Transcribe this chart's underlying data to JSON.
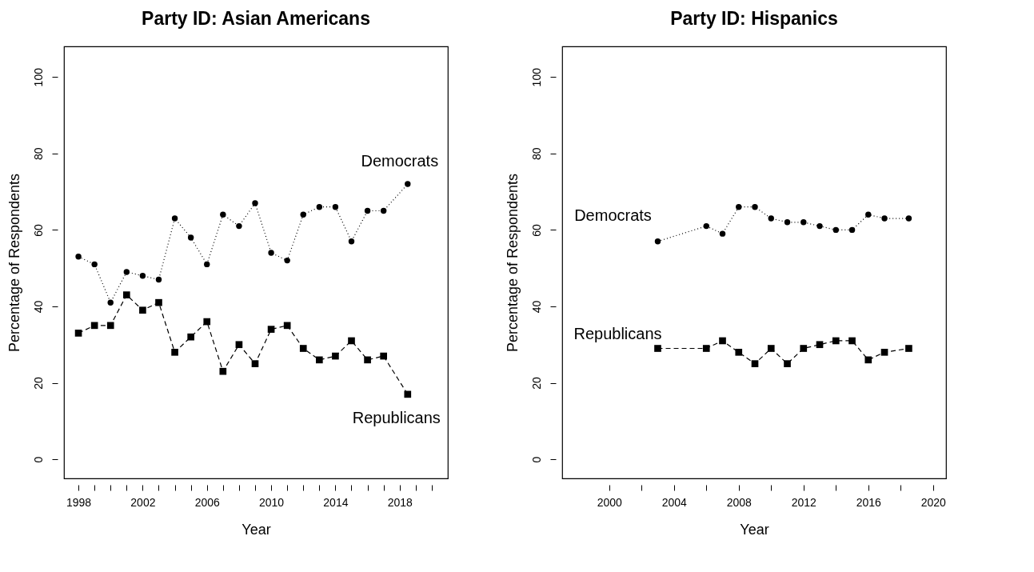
{
  "chart_data": [
    {
      "type": "line",
      "title": "Party ID: Asian Americans",
      "xlabel": "Year",
      "ylabel": "Percentage of Respondents",
      "xlim": [
        1997.1,
        2021
      ],
      "ylim": [
        -5,
        108
      ],
      "yticks": [
        0,
        20,
        40,
        60,
        80,
        100
      ],
      "xticks": [
        1998,
        {
          "value": 1999,
          "label": null
        },
        {
          "value": 2000,
          "label": null
        },
        {
          "value": 2001,
          "label": null
        },
        2002,
        {
          "value": 2003,
          "label": null
        },
        {
          "value": 2004,
          "label": null
        },
        {
          "value": 2005,
          "label": null
        },
        2006,
        {
          "value": 2007,
          "label": null
        },
        {
          "value": 2008,
          "label": null
        },
        {
          "value": 2009,
          "label": null
        },
        2010,
        {
          "value": 2011,
          "label": null
        },
        {
          "value": 2012,
          "label": null
        },
        {
          "value": 2013,
          "label": null
        },
        2014,
        {
          "value": 2015,
          "label": null
        },
        {
          "value": 2016,
          "label": null
        },
        {
          "value": 2017,
          "label": null
        },
        2018,
        {
          "value": 2019,
          "label": null
        },
        {
          "value": 2020,
          "label": null
        }
      ],
      "grid": false,
      "x": [
        1998,
        1999,
        2000,
        2001,
        2002,
        2003,
        2004,
        2005,
        2006,
        2007,
        2008,
        2009,
        2010,
        2011,
        2012,
        2013,
        2014,
        2015,
        2016,
        2017,
        2018.5
      ],
      "series": [
        {
          "name": "Democrats",
          "color": "#000000",
          "marker": "circle",
          "line_style": "dotted",
          "values": [
            53,
            51,
            41,
            49,
            48,
            47,
            63,
            58,
            51,
            64,
            61,
            67,
            54,
            52,
            64,
            66,
            66,
            57,
            65,
            65,
            72
          ]
        },
        {
          "name": "Republicans",
          "color": "#000000",
          "marker": "square",
          "line_style": "dashed",
          "values": [
            33,
            35,
            35,
            43,
            39,
            41,
            28,
            32,
            36,
            23,
            30,
            25,
            34,
            35,
            29,
            26,
            27,
            31,
            26,
            27,
            17
          ]
        }
      ]
    },
    {
      "type": "line",
      "title": "Party ID: Hispanics",
      "xlabel": "Year",
      "ylabel": "Percentage of Respondents",
      "xlim": [
        1997.1,
        2020.8
      ],
      "ylim": [
        -5,
        108
      ],
      "yticks": [
        0,
        20,
        40,
        60,
        80,
        100
      ],
      "xticks": [
        2000,
        {
          "value": 2002,
          "label": null
        },
        2004,
        {
          "value": 2006,
          "label": null
        },
        2008,
        {
          "value": 2010,
          "label": null
        },
        2012,
        {
          "value": 2014,
          "label": null
        },
        2016,
        {
          "value": 2018,
          "label": null
        },
        2020
      ],
      "grid": false,
      "x": [
        2003,
        2006,
        2007,
        2008,
        2009,
        2010,
        2011,
        2012,
        2013,
        2014,
        2015,
        2016,
        2017,
        2018.5
      ],
      "series": [
        {
          "name": "Democrats",
          "color": "#000000",
          "marker": "circle",
          "line_style": "dotted",
          "values": [
            57,
            61,
            59,
            66,
            66,
            63,
            62,
            62,
            61,
            60,
            60,
            64,
            63,
            63
          ]
        },
        {
          "name": "Republicans",
          "color": "#000000",
          "marker": "square",
          "line_style": "dashed",
          "values": [
            29,
            29,
            31,
            28,
            25,
            29,
            25,
            29,
            30,
            31,
            31,
            26,
            28,
            29
          ]
        }
      ]
    }
  ]
}
